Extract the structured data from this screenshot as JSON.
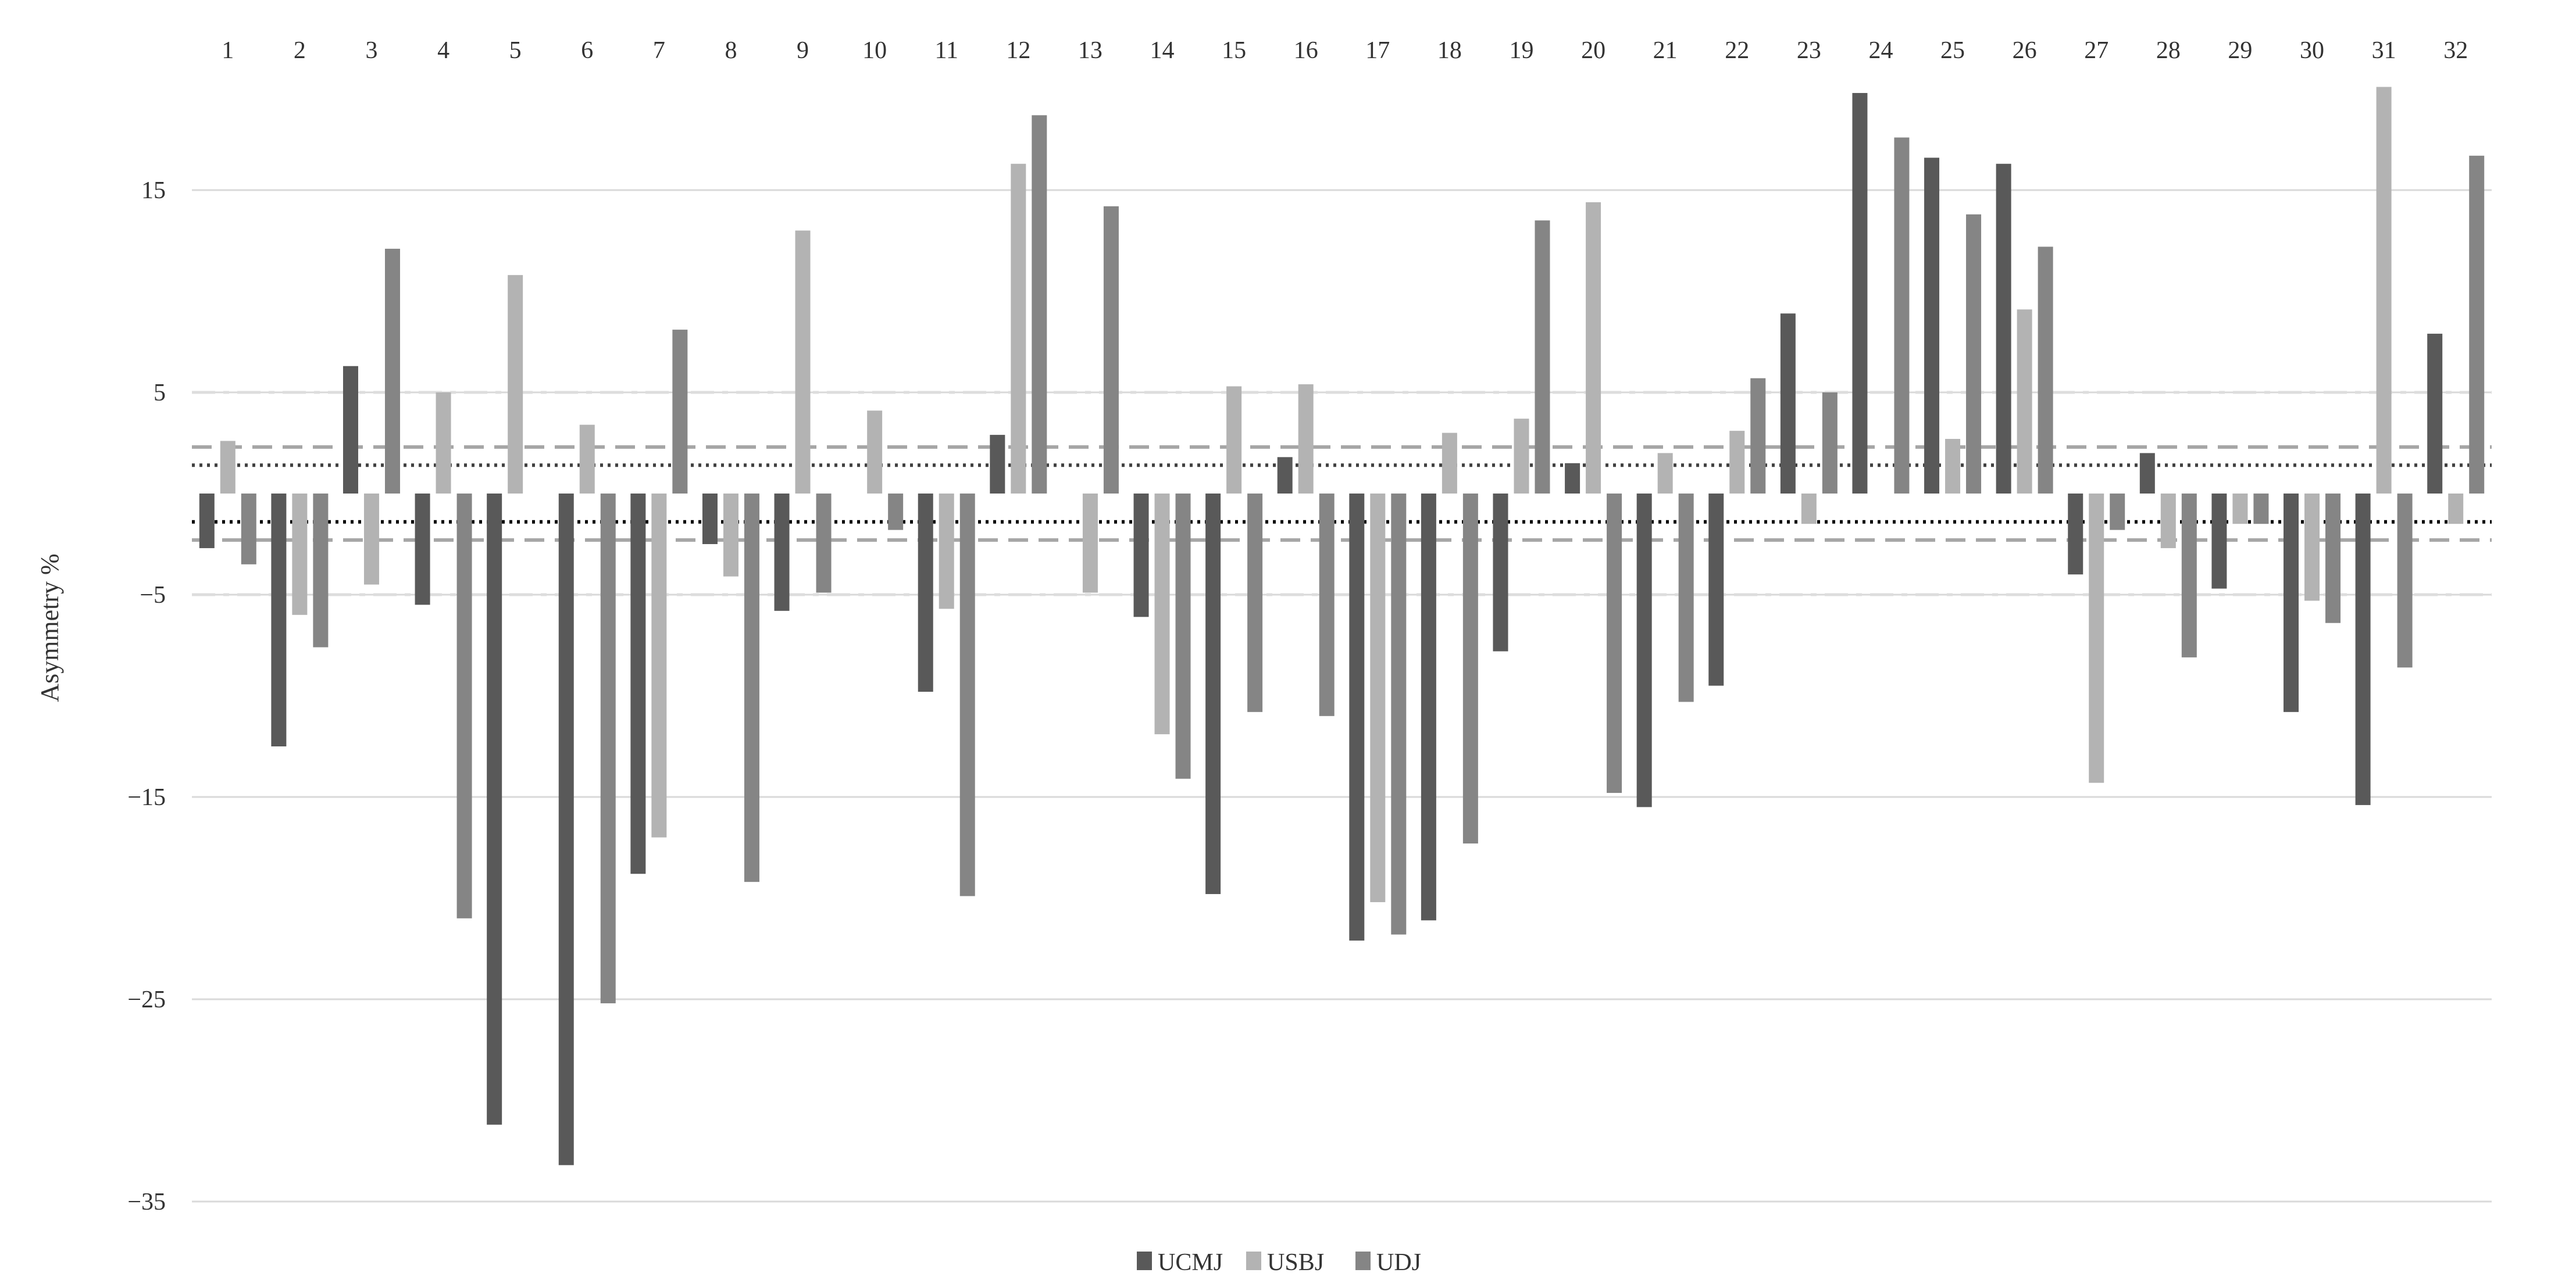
{
  "chart_data": {
    "type": "bar",
    "title": "",
    "xlabel": "",
    "ylabel": "Asymmetry %",
    "ylim": [
      -35,
      20
    ],
    "y_ticks": [
      15,
      5,
      -5,
      -15,
      -25,
      -35
    ],
    "y_tick_labels": [
      "15",
      "5",
      "−5",
      "−15",
      "−25",
      "−35"
    ],
    "categories": [
      "1",
      "2",
      "3",
      "4",
      "5",
      "6",
      "7",
      "8",
      "9",
      "10",
      "11",
      "12",
      "13",
      "14",
      "15",
      "16",
      "17",
      "18",
      "19",
      "20",
      "21",
      "22",
      "23",
      "24",
      "25",
      "26",
      "27",
      "28",
      "29",
      "30",
      "31",
      "32"
    ],
    "x_axis_position": "top",
    "grid": "horizontal",
    "legend_position": "bottom",
    "series": [
      {
        "name": "UCMJ",
        "color": "#595959",
        "values": [
          -2.7,
          -12.5,
          6.3,
          -5.5,
          -31.2,
          -33.2,
          -18.8,
          -2.5,
          -5.8,
          0,
          -9.8,
          2.9,
          0,
          -6.1,
          -19.8,
          1.8,
          -22.1,
          -21.1,
          -7.8,
          1.5,
          -15.5,
          -9.5,
          8.9,
          19.8,
          16.6,
          16.3,
          -4,
          2,
          -4.7,
          -10.8,
          -15.4,
          7.9
        ]
      },
      {
        "name": "USBJ",
        "color": "#b3b3b3",
        "values": [
          2.6,
          -6,
          -4.5,
          5,
          10.8,
          3.4,
          -17,
          -4.1,
          13,
          4.1,
          -5.7,
          16.3,
          -4.9,
          -11.9,
          5.3,
          5.4,
          -20.2,
          3,
          3.7,
          14.4,
          2,
          3.1,
          -1.5,
          0,
          2.7,
          9.1,
          -14.3,
          -2.7,
          -1.5,
          -5.3,
          20.1,
          -1.5
        ]
      },
      {
        "name": "UDJ",
        "color": "#858585",
        "values": [
          -3.5,
          -7.6,
          12.1,
          -21,
          0,
          -25.2,
          8.1,
          -19.2,
          -4.9,
          -1.8,
          -19.9,
          18.7,
          14.2,
          -14.1,
          -10.8,
          -11,
          -21.8,
          -17.3,
          13.5,
          -14.8,
          -10.3,
          5.7,
          5,
          17.6,
          13.8,
          12.2,
          -1.8,
          -8.1,
          -1.5,
          -6.4,
          -8.6,
          16.7
        ]
      }
    ],
    "reference_lines": [
      {
        "value": 5,
        "style": "dash-dot",
        "color": "#dddddd"
      },
      {
        "value": -5,
        "style": "dash-dot",
        "color": "#dddddd"
      },
      {
        "value": 2.3,
        "style": "dashed",
        "color": "#a6a6a6"
      },
      {
        "value": -2.3,
        "style": "dashed",
        "color": "#a6a6a6"
      },
      {
        "value": 1.4,
        "style": "dotted",
        "color": "#404040"
      },
      {
        "value": -1.4,
        "style": "dotted",
        "color": "#000000"
      }
    ]
  }
}
